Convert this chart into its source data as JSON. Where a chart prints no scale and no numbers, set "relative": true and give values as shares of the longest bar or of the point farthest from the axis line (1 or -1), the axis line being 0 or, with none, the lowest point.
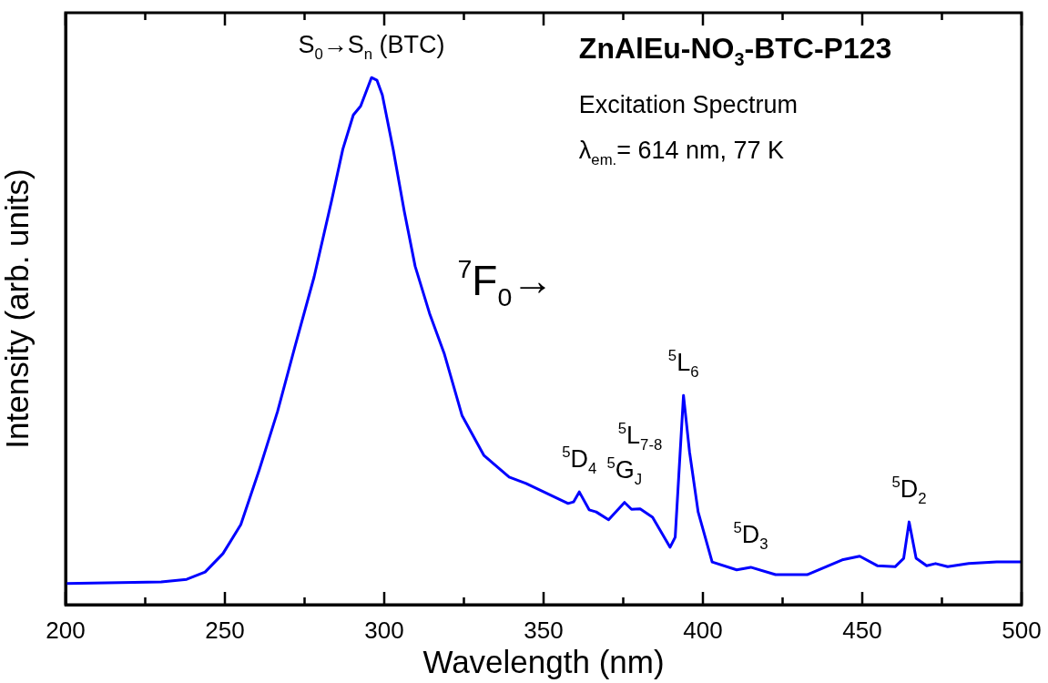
{
  "chart_data": {
    "type": "line",
    "title": "ZnAlEu-NO$_{3}$-BTC-P123",
    "subtitle": "Excitation Spectrum",
    "xlabel": "Wavelength (nm)",
    "ylabel": "Intensity (arb. units)",
    "relative": true,
    "xlim": [
      200,
      500
    ],
    "xticks": [
      200,
      {
        "value": 225,
        "label": null
      },
      250,
      {
        "value": 275,
        "label": null
      },
      300,
      {
        "value": 325,
        "label": null
      },
      350,
      {
        "value": 375,
        "label": null
      },
      400,
      {
        "value": 425,
        "label": null
      },
      450,
      {
        "value": 475,
        "label": null
      },
      500
    ],
    "tick_labels": "x",
    "grid": false,
    "legend": false,
    "marker": "none",
    "line_style": "solid",
    "series": [
      {
        "color": "#0000ff",
        "x": [
          200,
          230,
          238,
          243.8,
          249.4,
          255,
          260.8,
          266.5,
          272,
          278,
          283.5,
          287,
          290.3,
          292.6,
          296,
          297.7,
          299.4,
          302.8,
          306.3,
          309.7,
          314.2,
          318.8,
          324.4,
          331.3,
          339.2,
          344.5,
          357.7,
          359.4,
          361.2,
          364.3,
          366.5,
          370.4,
          375.4,
          377.6,
          380.3,
          384.2,
          389.7,
          391.3,
          393.9,
          395.8,
          398.5,
          402.9,
          410.6,
          415,
          422.8,
          432.7,
          443.7,
          449.2,
          454.7,
          460.3,
          463,
          464.7,
          466.9,
          470.2,
          473,
          476.8,
          483.4,
          492.2,
          500
        ],
        "values": [
          0.04,
          0.043,
          0.048,
          0.062,
          0.097,
          0.152,
          0.256,
          0.366,
          0.49,
          0.622,
          0.767,
          0.864,
          0.929,
          0.946,
          1,
          0.995,
          0.967,
          0.864,
          0.746,
          0.642,
          0.553,
          0.477,
          0.359,
          0.283,
          0.242,
          0.23,
          0.192,
          0.195,
          0.214,
          0.18,
          0.176,
          0.161,
          0.194,
          0.181,
          0.182,
          0.166,
          0.109,
          0.128,
          0.397,
          0.29,
          0.176,
          0.081,
          0.066,
          0.071,
          0.057,
          0.057,
          0.085,
          0.092,
          0.074,
          0.072,
          0.088,
          0.157,
          0.088,
          0.074,
          0.078,
          0.072,
          0.078,
          0.081,
          0.081
        ]
      }
    ],
    "annotations": [
      "λ$_{em.}$= 614 nm, 77 K",
      "$^{7}$F$_{0}$→",
      {
        "text": "S$_{0}$→S$_{n}$ (BTC)",
        "x": 296,
        "y": 1
      },
      {
        "text": "$^{5}$D$_{4}$",
        "x": 361.2,
        "y": 0.214
      },
      {
        "text": "$^{5}$G$_{J}$",
        "x": 375.4,
        "y": 0.194
      },
      {
        "text": "$^{5}$L$_{7-8}$",
        "x": 380.3,
        "y": 0.182
      },
      {
        "text": "$^{5}$L$_{6}$",
        "x": 393.9,
        "y": 0.397
      },
      {
        "text": "$^{5}$D$_{3}$",
        "x": 415,
        "y": 0.071
      },
      {
        "text": "$^{5}$D$_{2}$",
        "x": 464.7,
        "y": 0.157
      }
    ]
  }
}
